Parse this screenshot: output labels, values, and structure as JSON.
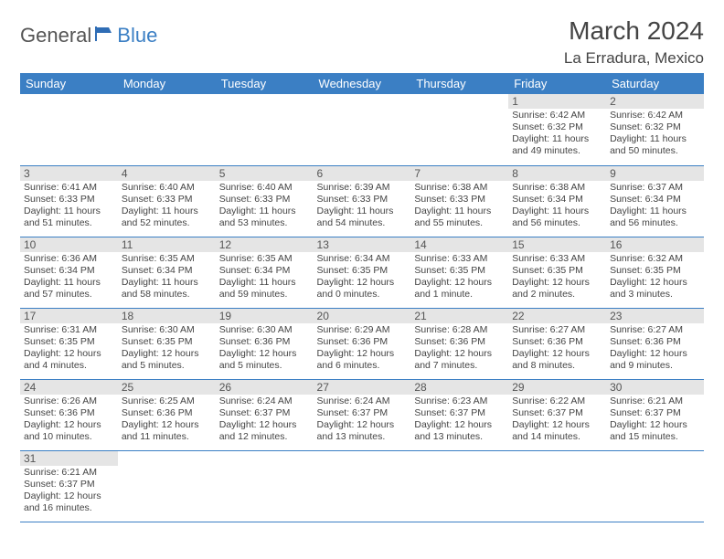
{
  "brand": {
    "part1": "General",
    "part2": "Blue"
  },
  "title": "March 2024",
  "location": "La Erradura, Mexico",
  "colors": {
    "header_bg": "#3b7fc4",
    "header_fg": "#ffffff",
    "daynum_bg": "#e5e5e5",
    "text": "#444444",
    "rule": "#3b7fc4"
  },
  "dayNames": [
    "Sunday",
    "Monday",
    "Tuesday",
    "Wednesday",
    "Thursday",
    "Friday",
    "Saturday"
  ],
  "leadingBlanks": 5,
  "days": [
    {
      "n": 1,
      "sr": "6:42 AM",
      "ss": "6:32 PM",
      "dl": "11 hours and 49 minutes."
    },
    {
      "n": 2,
      "sr": "6:42 AM",
      "ss": "6:32 PM",
      "dl": "11 hours and 50 minutes."
    },
    {
      "n": 3,
      "sr": "6:41 AM",
      "ss": "6:33 PM",
      "dl": "11 hours and 51 minutes."
    },
    {
      "n": 4,
      "sr": "6:40 AM",
      "ss": "6:33 PM",
      "dl": "11 hours and 52 minutes."
    },
    {
      "n": 5,
      "sr": "6:40 AM",
      "ss": "6:33 PM",
      "dl": "11 hours and 53 minutes."
    },
    {
      "n": 6,
      "sr": "6:39 AM",
      "ss": "6:33 PM",
      "dl": "11 hours and 54 minutes."
    },
    {
      "n": 7,
      "sr": "6:38 AM",
      "ss": "6:33 PM",
      "dl": "11 hours and 55 minutes."
    },
    {
      "n": 8,
      "sr": "6:38 AM",
      "ss": "6:34 PM",
      "dl": "11 hours and 56 minutes."
    },
    {
      "n": 9,
      "sr": "6:37 AM",
      "ss": "6:34 PM",
      "dl": "11 hours and 56 minutes."
    },
    {
      "n": 10,
      "sr": "6:36 AM",
      "ss": "6:34 PM",
      "dl": "11 hours and 57 minutes."
    },
    {
      "n": 11,
      "sr": "6:35 AM",
      "ss": "6:34 PM",
      "dl": "11 hours and 58 minutes."
    },
    {
      "n": 12,
      "sr": "6:35 AM",
      "ss": "6:34 PM",
      "dl": "11 hours and 59 minutes."
    },
    {
      "n": 13,
      "sr": "6:34 AM",
      "ss": "6:35 PM",
      "dl": "12 hours and 0 minutes."
    },
    {
      "n": 14,
      "sr": "6:33 AM",
      "ss": "6:35 PM",
      "dl": "12 hours and 1 minute."
    },
    {
      "n": 15,
      "sr": "6:33 AM",
      "ss": "6:35 PM",
      "dl": "12 hours and 2 minutes."
    },
    {
      "n": 16,
      "sr": "6:32 AM",
      "ss": "6:35 PM",
      "dl": "12 hours and 3 minutes."
    },
    {
      "n": 17,
      "sr": "6:31 AM",
      "ss": "6:35 PM",
      "dl": "12 hours and 4 minutes."
    },
    {
      "n": 18,
      "sr": "6:30 AM",
      "ss": "6:35 PM",
      "dl": "12 hours and 5 minutes."
    },
    {
      "n": 19,
      "sr": "6:30 AM",
      "ss": "6:36 PM",
      "dl": "12 hours and 5 minutes."
    },
    {
      "n": 20,
      "sr": "6:29 AM",
      "ss": "6:36 PM",
      "dl": "12 hours and 6 minutes."
    },
    {
      "n": 21,
      "sr": "6:28 AM",
      "ss": "6:36 PM",
      "dl": "12 hours and 7 minutes."
    },
    {
      "n": 22,
      "sr": "6:27 AM",
      "ss": "6:36 PM",
      "dl": "12 hours and 8 minutes."
    },
    {
      "n": 23,
      "sr": "6:27 AM",
      "ss": "6:36 PM",
      "dl": "12 hours and 9 minutes."
    },
    {
      "n": 24,
      "sr": "6:26 AM",
      "ss": "6:36 PM",
      "dl": "12 hours and 10 minutes."
    },
    {
      "n": 25,
      "sr": "6:25 AM",
      "ss": "6:36 PM",
      "dl": "12 hours and 11 minutes."
    },
    {
      "n": 26,
      "sr": "6:24 AM",
      "ss": "6:37 PM",
      "dl": "12 hours and 12 minutes."
    },
    {
      "n": 27,
      "sr": "6:24 AM",
      "ss": "6:37 PM",
      "dl": "12 hours and 13 minutes."
    },
    {
      "n": 28,
      "sr": "6:23 AM",
      "ss": "6:37 PM",
      "dl": "12 hours and 13 minutes."
    },
    {
      "n": 29,
      "sr": "6:22 AM",
      "ss": "6:37 PM",
      "dl": "12 hours and 14 minutes."
    },
    {
      "n": 30,
      "sr": "6:21 AM",
      "ss": "6:37 PM",
      "dl": "12 hours and 15 minutes."
    },
    {
      "n": 31,
      "sr": "6:21 AM",
      "ss": "6:37 PM",
      "dl": "12 hours and 16 minutes."
    }
  ],
  "labels": {
    "sunrise": "Sunrise:",
    "sunset": "Sunset:",
    "daylight": "Daylight:"
  }
}
